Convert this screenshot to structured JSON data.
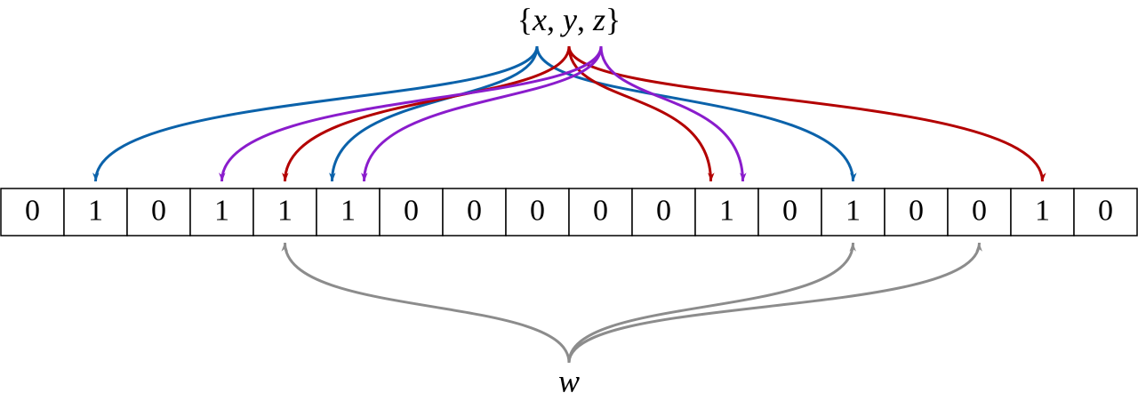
{
  "set": {
    "left": "{",
    "separator": ",",
    "right": "}",
    "elements": [
      {
        "label": "x",
        "color": "#0b62aa",
        "targets": [
          1,
          5,
          13
        ]
      },
      {
        "label": "y",
        "color": "#b30000",
        "targets": [
          4,
          11,
          16
        ]
      },
      {
        "label": "z",
        "color": "#8a1ccc",
        "targets": [
          3,
          5,
          11
        ]
      }
    ]
  },
  "bits": [
    0,
    1,
    0,
    1,
    1,
    1,
    0,
    0,
    0,
    0,
    0,
    1,
    0,
    1,
    0,
    0,
    1,
    0
  ],
  "query": {
    "label": "w",
    "color": "#8c8c8c",
    "targets": [
      4,
      13,
      15
    ]
  }
}
